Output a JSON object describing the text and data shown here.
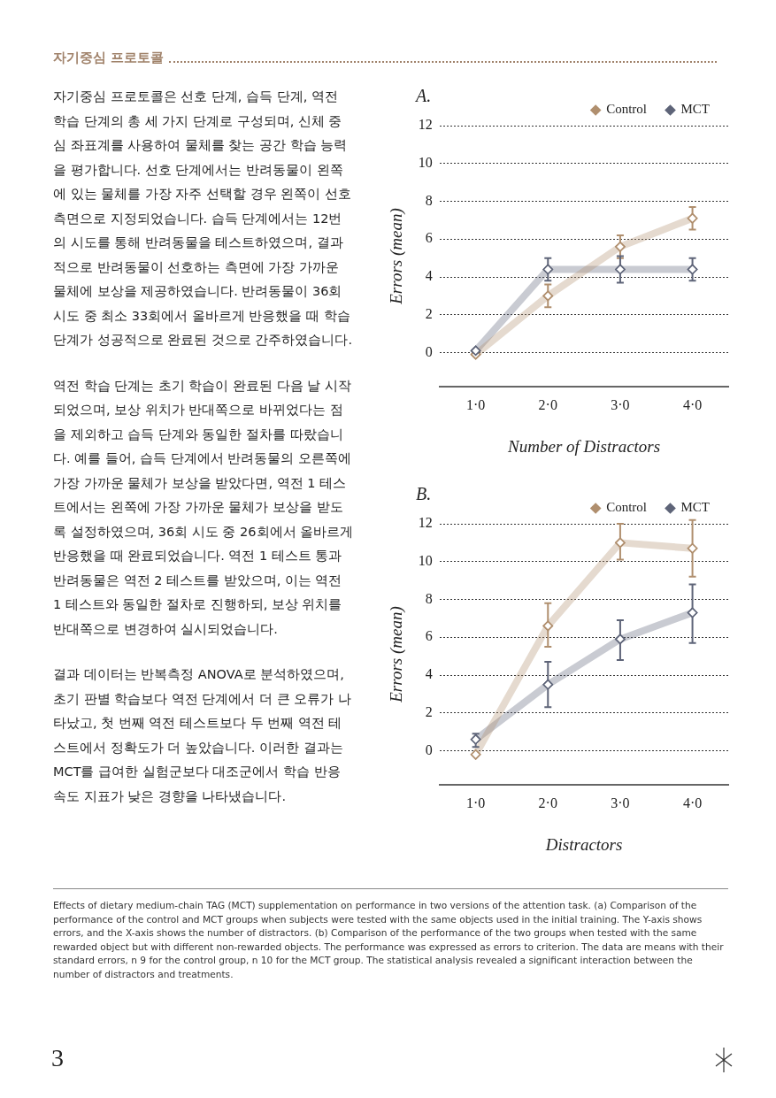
{
  "chart_data": [
    {
      "type": "line",
      "title": "A.",
      "xlabel": "Number of Distractors",
      "ylabel": "Errors (mean)",
      "categories": [
        "1·0",
        "2·0",
        "3·0",
        "4·0"
      ],
      "series": [
        {
          "name": "Control",
          "color": "#b08f6e",
          "values": [
            -0.1,
            3.0,
            5.6,
            7.1
          ],
          "errors": [
            null,
            0.6,
            0.6,
            0.6
          ]
        },
        {
          "name": "MCT",
          "color": "#5e6478",
          "values": [
            0.1,
            4.4,
            4.4,
            4.4
          ],
          "errors": [
            null,
            0.6,
            0.7,
            0.6
          ]
        }
      ],
      "ylim": [
        -1.8,
        12
      ],
      "yticks": [
        0,
        2,
        4,
        6,
        8,
        10,
        12
      ],
      "grid": "y",
      "legend": "top right",
      "marker": "diamond",
      "line_style": "solid",
      "annotations": [
        "자기중심 프로토콜",
        "자기중심 프로토콜은 선호 단계, 습득 단계, 역전 학습 단계의 총 세 가지 단계로 구성되며, 신체 중심 좌표계를 사용하여 물체를 찾는 공간 학습 능력을 평가합니다. 선호 단계에서는 반려동물이 왼쪽에 있는 물체를 가장 자주 선택할 경우 왼쪽이 선호 측면으로 지정되었습니다. 습득 단계에서는 12번의 시도를 통해 반려동물을 테스트하였으며, 결과적으로 반려동물이 선호하는 측면에 가장 가까운 물체에 보상을 제공하였습니다. 반려동물이 36회 시도 중 최소 33회에서 올바르게 반응했을 때 학습 단계가 성공적으로 완료된 것으로 간주하였습니다.",
        "역전 학습 단계는 초기 학습이 완료된 다음 날 시작되었으며, 보상 위치가 반대쪽으로 바뀌었다는 점을 제외하고 습득 단계와 동일한 절차를 따랐습니다. 예를 들어, 습득 단계에서 반려동물의 오른쪽에 가장 가까운 물체가 보상을 받았다면, 역전 1 테스트에서는 왼쪽에 가장 가까운 물체가 보상을 받도록 설정하였으며, 36회 시도 중 26회에서 올바르게 반응했을 때 완료되었습니다. 역전 1 테스트 통과 반려동물은 역전 2 테스트를 받았으며, 이는 역전 1 테스트와 동일한 절차로 진행하되, 보상 위치를 반대쪽으로 변경하여 실시되었습니다.",
        "결과 데이터는 반복측정 ANOVA로 분석하였으며, 초기 판별 학습보다 역전 단계에서 더 큰 오류가 나타났고, 첫 번째 역전 테스트보다 두 번째 역전 테스트에서 정확도가 더 높았습니다. 이러한 결과는 MCT를 급여한 실험군보다 대조군에서 학습 반응 속도 지표가 낮은 경향을 나타냈습니다.",
        "Effects of dietary medium-chain TAG (MCT) supplementation on performance in two versions of the attention task. (a) Comparison of the performance of the control and MCT groups when subjects were tested with the same objects used in the initial training. The Y-axis shows errors, and the X-axis shows the number of distractors. (b) Comparison of the performance of the two groups when tested with the same rewarded object but with different non-rewarded objects. The performance was expressed as errors to criterion. The data are means with their standard errors, n 9 for the control group, n 10 for the MCT group. The statistical analysis revealed a significant interaction between the number of distractors and treatments.",
        "3"
      ]
    },
    {
      "type": "line",
      "title": "B.",
      "xlabel": "Distractors",
      "ylabel": "Errors (mean)",
      "categories": [
        "1·0",
        "2·0",
        "3·0",
        "4·0"
      ],
      "series": [
        {
          "name": "Control",
          "color": "#b08f6e",
          "values": [
            -0.2,
            6.6,
            11.0,
            10.7
          ],
          "errors": [
            null,
            [
              5.5,
              7.8
            ],
            [
              10.1,
              12.0
            ],
            [
              9.2,
              12.2
            ]
          ]
        },
        {
          "name": "MCT",
          "color": "#5e6478",
          "values": [
            0.6,
            3.5,
            5.9,
            7.3
          ],
          "errors": [
            [
              0.2,
              0.9
            ],
            [
              2.3,
              4.7
            ],
            [
              4.8,
              6.9
            ],
            [
              5.7,
              8.8
            ]
          ]
        }
      ],
      "ylim": [
        -1.8,
        12
      ],
      "yticks": [
        0,
        2,
        4,
        6,
        8,
        10,
        12
      ],
      "grid": "y",
      "legend": "top right",
      "marker": "diamond",
      "line_style": "solid"
    }
  ]
}
